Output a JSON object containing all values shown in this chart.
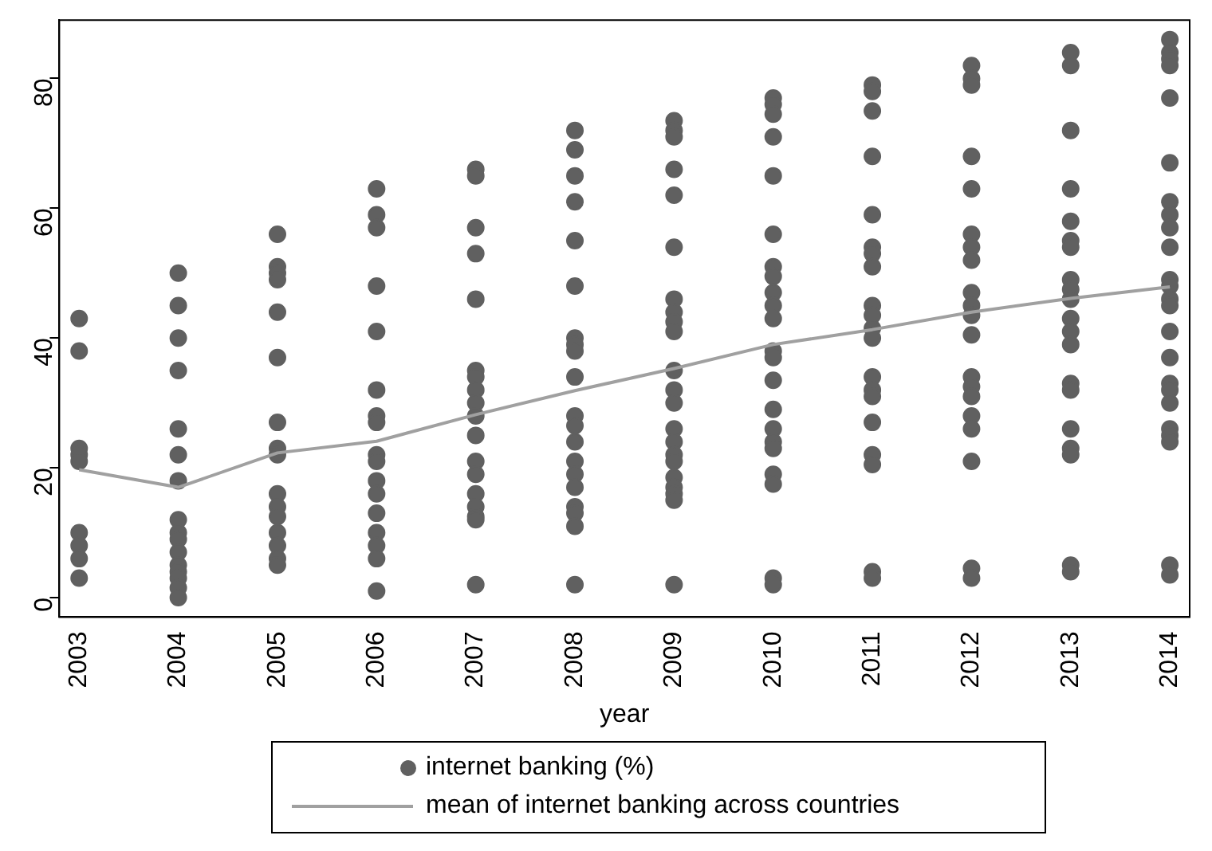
{
  "chart_data": {
    "type": "scatter",
    "xlabel": "year",
    "x": [
      2003,
      2004,
      2005,
      2006,
      2007,
      2008,
      2009,
      2010,
      2011,
      2012,
      2013,
      2014
    ],
    "xlim": [
      2002.8,
      2014.2
    ],
    "xticks": [
      2003,
      2004,
      2005,
      2006,
      2007,
      2008,
      2009,
      2010,
      2011,
      2012,
      2013,
      2014
    ],
    "ylim": [
      -3,
      89
    ],
    "yticks": [
      0,
      20,
      40,
      60,
      80
    ],
    "grid": false,
    "legend": "bottom",
    "marker": "circle",
    "series": [
      {
        "name": "internet banking (%)",
        "type": "scatter",
        "color": "#606060",
        "x": [
          2003,
          2003,
          2003,
          2003,
          2003,
          2003,
          2003,
          2003,
          2003,
          2004,
          2004,
          2004,
          2004,
          2004,
          2004,
          2004,
          2004,
          2004,
          2004,
          2004,
          2004,
          2004,
          2004,
          2004,
          2004,
          2005,
          2005,
          2005,
          2005,
          2005,
          2005,
          2005,
          2005,
          2005,
          2005,
          2005,
          2005,
          2005,
          2005,
          2005,
          2005,
          2006,
          2006,
          2006,
          2006,
          2006,
          2006,
          2006,
          2006,
          2006,
          2006,
          2006,
          2006,
          2006,
          2006,
          2006,
          2006,
          2006,
          2007,
          2007,
          2007,
          2007,
          2007,
          2007,
          2007,
          2007,
          2007,
          2007,
          2007,
          2007,
          2007,
          2007,
          2007,
          2007,
          2007,
          2007,
          2008,
          2008,
          2008,
          2008,
          2008,
          2008,
          2008,
          2008,
          2008,
          2008,
          2008,
          2008,
          2008,
          2008,
          2008,
          2008,
          2008,
          2008,
          2008,
          2008,
          2009,
          2009,
          2009,
          2009,
          2009,
          2009,
          2009,
          2009,
          2009,
          2009,
          2009,
          2009,
          2009,
          2009,
          2009,
          2009,
          2009,
          2009,
          2009,
          2009,
          2009,
          2009,
          2010,
          2010,
          2010,
          2010,
          2010,
          2010,
          2010,
          2010,
          2010,
          2010,
          2010,
          2010,
          2010,
          2010,
          2010,
          2010,
          2010,
          2010,
          2010,
          2010,
          2010,
          2010,
          2011,
          2011,
          2011,
          2011,
          2011,
          2011,
          2011,
          2011,
          2011,
          2011,
          2011,
          2011,
          2011,
          2011,
          2011,
          2011,
          2011,
          2011,
          2011,
          2011,
          2012,
          2012,
          2012,
          2012,
          2012,
          2012,
          2012,
          2012,
          2012,
          2012,
          2012,
          2012,
          2012,
          2012,
          2012,
          2012,
          2012,
          2012,
          2012,
          2012,
          2013,
          2013,
          2013,
          2013,
          2013,
          2013,
          2013,
          2013,
          2013,
          2013,
          2013,
          2013,
          2013,
          2013,
          2013,
          2013,
          2013,
          2013,
          2013,
          2013,
          2014,
          2014,
          2014,
          2014,
          2014,
          2014,
          2014,
          2014,
          2014,
          2014,
          2014,
          2014,
          2014,
          2014,
          2014,
          2014,
          2014,
          2014,
          2014,
          2014,
          2014,
          2014,
          2014,
          2014
        ],
        "values": [
          43,
          38,
          23,
          22,
          21,
          10,
          8,
          6,
          3,
          50,
          45,
          40,
          35,
          26,
          22,
          18,
          12,
          10,
          9,
          7,
          5,
          4,
          3,
          1.5,
          0,
          56,
          51,
          50,
          49,
          44,
          37,
          27,
          23,
          22,
          16,
          14,
          12.5,
          10,
          8,
          6,
          5,
          63,
          59,
          57,
          48,
          41,
          32,
          28,
          27,
          22,
          21,
          18,
          16,
          13,
          10,
          8,
          6,
          1,
          66,
          65,
          57,
          53,
          46,
          35,
          34,
          32,
          30,
          28,
          25,
          21,
          19,
          16,
          14,
          12.5,
          12,
          2,
          72,
          69,
          65,
          61,
          55,
          48,
          40,
          39,
          38,
          34,
          28,
          26.5,
          24,
          21,
          19,
          17,
          14,
          13,
          11,
          2,
          73.5,
          72,
          71,
          66,
          62,
          54,
          46,
          44,
          42.5,
          41,
          35,
          32,
          30,
          26,
          24,
          22,
          21,
          18.5,
          17,
          16,
          15,
          2,
          77,
          76,
          74.5,
          71,
          65,
          56,
          51,
          49.5,
          47,
          45,
          43,
          38,
          37,
          33.5,
          29,
          26,
          24,
          23,
          19,
          17.5,
          3,
          2,
          79,
          78,
          75,
          68,
          59,
          54,
          53,
          51,
          45,
          43.5,
          41.5,
          40,
          34,
          32,
          31,
          27,
          22,
          20.5,
          4,
          3,
          82,
          80,
          79,
          68,
          63,
          56,
          54,
          52,
          47,
          45,
          43.5,
          40.5,
          34,
          32.5,
          31,
          28,
          26,
          21,
          4.5,
          3,
          84,
          82,
          72,
          63,
          58,
          55,
          54,
          49,
          47.5,
          46,
          43,
          41,
          39,
          33,
          32,
          26,
          23,
          22,
          5,
          4,
          86,
          84,
          83,
          82,
          77,
          67,
          61,
          59,
          57,
          54,
          49,
          48,
          46,
          45,
          41,
          37,
          33,
          32,
          30,
          26,
          25,
          24,
          5,
          3.5
        ]
      },
      {
        "name": "mean of internet banking across countries",
        "type": "line",
        "color": "#a0a0a0",
        "marker": "none",
        "values": [
          19.7,
          17,
          22.3,
          24.1,
          28.2,
          31.9,
          35.3,
          39,
          41.3,
          44,
          46.1,
          47.9
        ]
      }
    ]
  }
}
